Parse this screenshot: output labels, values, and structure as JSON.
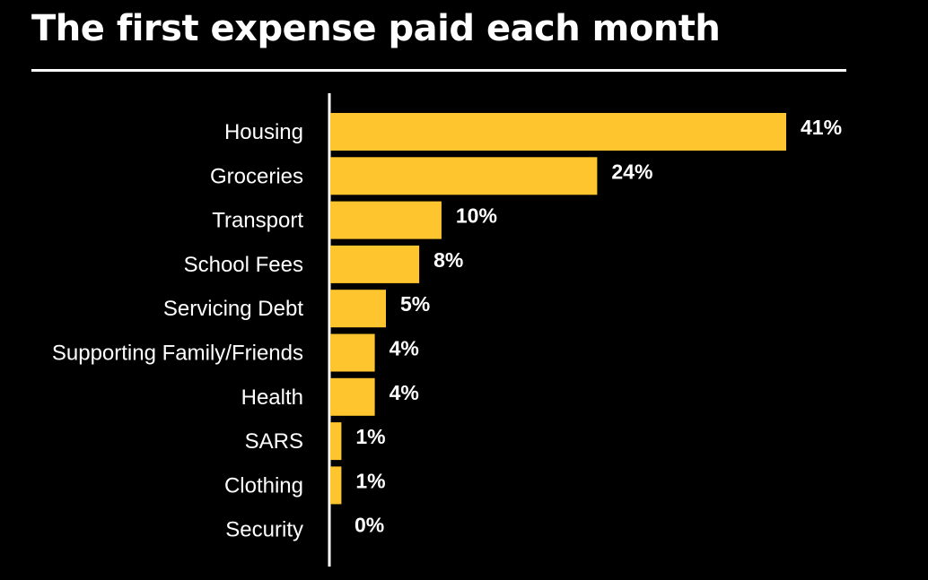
{
  "chart_data": {
    "type": "bar",
    "orientation": "horizontal",
    "title": "The first expense paid each month",
    "xlabel": "",
    "ylabel": "",
    "xlim": [
      0,
      41
    ],
    "grid": false,
    "legend": "none",
    "categories": [
      "Housing",
      "Groceries",
      "Transport",
      "School Fees",
      "Servicing Debt",
      "Supporting Family/Friends",
      "Health",
      "SARS",
      "Clothing",
      "Security"
    ],
    "values": [
      41,
      24,
      10,
      8,
      5,
      4,
      4,
      1,
      1,
      0
    ],
    "value_labels": [
      "41%",
      "24%",
      "10%",
      "8%",
      "5%",
      "4%",
      "4%",
      "1%",
      "1%",
      "0%"
    ],
    "unit": "%",
    "bar_color": "#FFC52E",
    "background_color": "#000000",
    "text_color": "#FFFFFF"
  }
}
